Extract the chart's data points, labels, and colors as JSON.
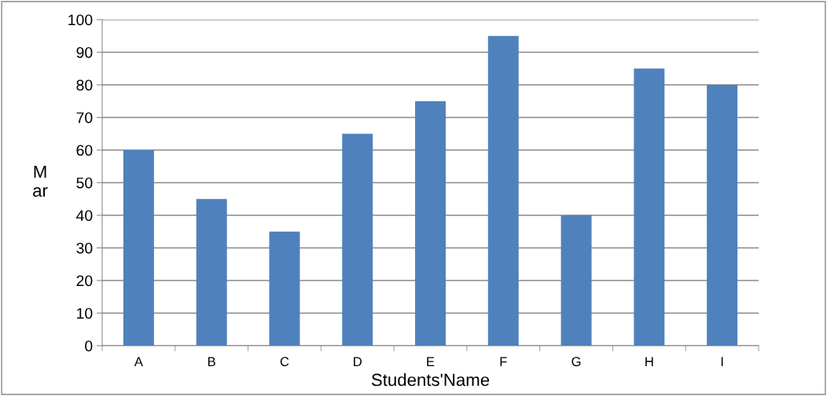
{
  "chart_data": {
    "type": "bar",
    "xlabel": "Students'Name",
    "ylabel": "M\nar",
    "categories": [
      "A",
      "B",
      "C",
      "D",
      "E",
      "F",
      "G",
      "H",
      "I"
    ],
    "values": [
      60,
      45,
      35,
      65,
      75,
      95,
      40,
      85,
      80
    ],
    "color": "#4f81bd",
    "ylim": [
      0,
      100
    ],
    "yticks": [
      0,
      10,
      20,
      30,
      40,
      50,
      60,
      70,
      80,
      90,
      100
    ],
    "grid": "y"
  }
}
